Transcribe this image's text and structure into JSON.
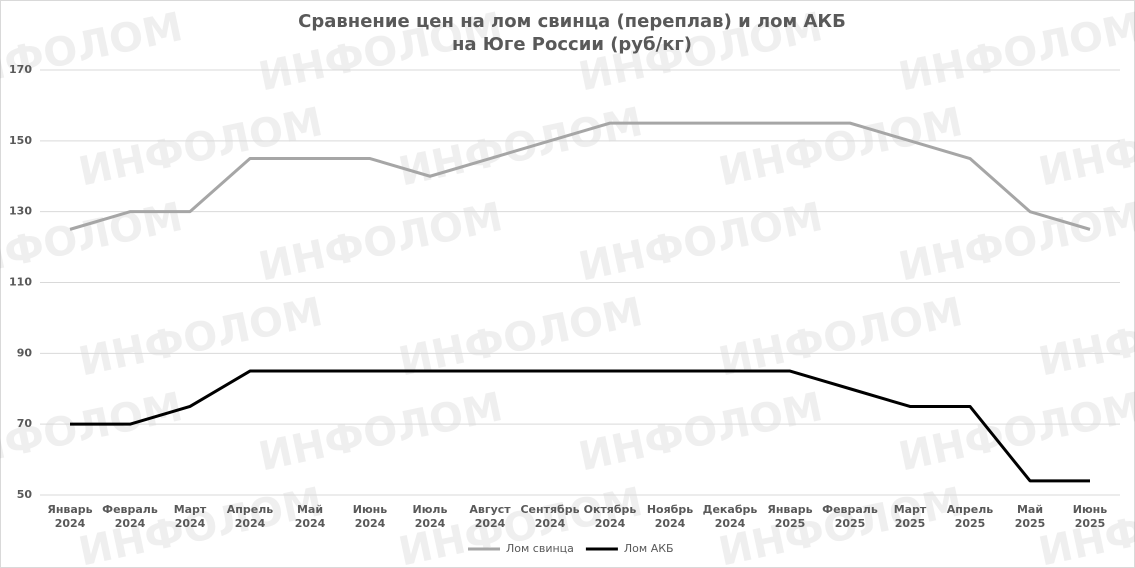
{
  "chart_data": {
    "type": "line",
    "title": [
      "Сравнение цен на лом свинца (переплав) и лом АКБ",
      "на Юге России (руб/кг)"
    ],
    "watermark": "ИНФОЛОМ",
    "categories": [
      [
        "Январь",
        "2024"
      ],
      [
        "Февраль",
        "2024"
      ],
      [
        "Март",
        "2024"
      ],
      [
        "Апрель",
        "2024"
      ],
      [
        "Май",
        "2024"
      ],
      [
        "Июнь",
        "2024"
      ],
      [
        "Июль",
        "2024"
      ],
      [
        "Август",
        "2024"
      ],
      [
        "Сентябрь",
        "2024"
      ],
      [
        "Октябрь",
        "2024"
      ],
      [
        "Ноябрь",
        "2024"
      ],
      [
        "Декабрь",
        "2024"
      ],
      [
        "Январь",
        "2025"
      ],
      [
        "Февраль",
        "2025"
      ],
      [
        "Март",
        "2025"
      ],
      [
        "Апрель",
        "2025"
      ],
      [
        "Май",
        "2025"
      ],
      [
        "Июнь",
        "2025"
      ]
    ],
    "series": [
      {
        "name": "Лом свинца",
        "color": "#a6a6a6",
        "values": [
          125,
          130,
          130,
          145,
          145,
          145,
          140,
          145,
          150,
          155,
          155,
          155,
          155,
          155,
          150,
          145,
          130,
          125
        ]
      },
      {
        "name": "Лом АКБ",
        "color": "#000000",
        "values": [
          70,
          70,
          75,
          85,
          85,
          85,
          85,
          85,
          85,
          85,
          85,
          85,
          85,
          80,
          75,
          75,
          54,
          54
        ]
      }
    ],
    "ylim": [
      50,
      170
    ],
    "yticks": [
      50,
      70,
      90,
      110,
      130,
      150,
      170
    ],
    "grid": true,
    "legend": "bottom"
  }
}
